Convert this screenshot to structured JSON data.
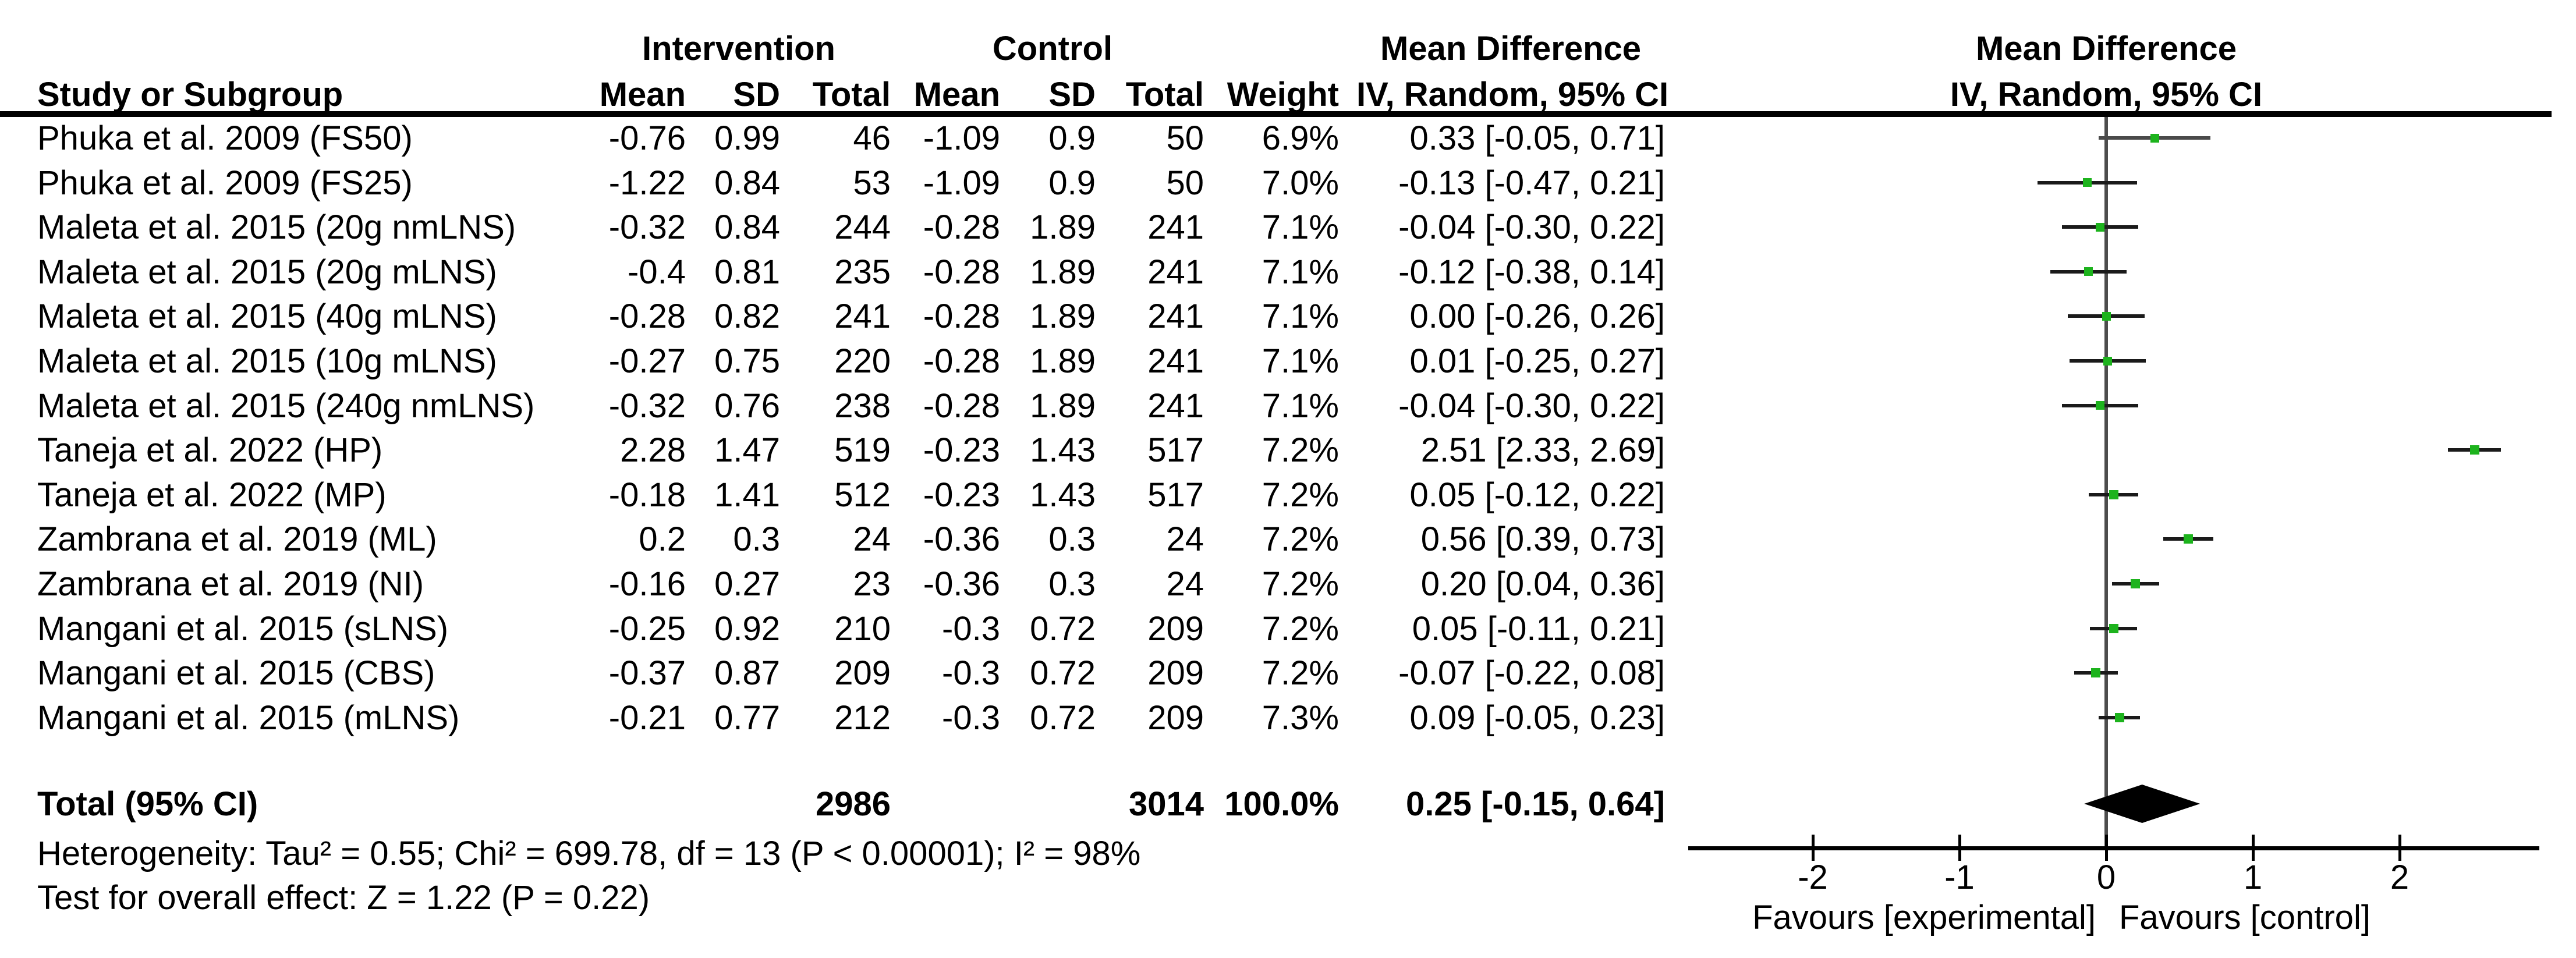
{
  "headers": {
    "study_col": "Study or Subgroup",
    "group1": "Intervention",
    "group2": "Control",
    "cols": [
      "Mean",
      "SD",
      "Total",
      "Mean",
      "SD",
      "Total",
      "Weight"
    ],
    "md_left_title": "Mean Difference",
    "md_left_sub": "IV, Random, 95% CI",
    "md_right_title": "Mean Difference",
    "md_right_sub": "IV, Random, 95% CI"
  },
  "chart_data": {
    "type": "forest",
    "effect_measure": "Mean Difference",
    "model": "IV, Random, 95% CI",
    "axis": {
      "xmin": -2.85,
      "xmax": 2.95,
      "ticks": [
        -2,
        -1,
        0,
        1,
        2
      ],
      "tick_labels": [
        "-2",
        "-1",
        "0",
        "1",
        "2"
      ]
    },
    "favours_left": "Favours [experimental]",
    "favours_right": "Favours [control]",
    "studies": [
      {
        "label": "Phuka et al. 2009 (FS50)",
        "mean1": "-0.76",
        "sd1": "0.99",
        "n1": "46",
        "mean2": "-1.09",
        "sd2": "0.9",
        "n2": "50",
        "weight": "6.9%",
        "ci_text": "0.33 [-0.05, 0.71]",
        "md": 0.33,
        "lo": -0.05,
        "hi": 0.71,
        "w": 6.9
      },
      {
        "label": "Phuka et al. 2009 (FS25)",
        "mean1": "-1.22",
        "sd1": "0.84",
        "n1": "53",
        "mean2": "-1.09",
        "sd2": "0.9",
        "n2": "50",
        "weight": "7.0%",
        "ci_text": "-0.13 [-0.47, 0.21]",
        "md": -0.13,
        "lo": -0.47,
        "hi": 0.21,
        "w": 7.0
      },
      {
        "label": "Maleta et al. 2015 (20g nmLNS)",
        "mean1": "-0.32",
        "sd1": "0.84",
        "n1": "244",
        "mean2": "-0.28",
        "sd2": "1.89",
        "n2": "241",
        "weight": "7.1%",
        "ci_text": "-0.04 [-0.30, 0.22]",
        "md": -0.04,
        "lo": -0.3,
        "hi": 0.22,
        "w": 7.1
      },
      {
        "label": "Maleta et al. 2015 (20g mLNS)",
        "mean1": "-0.4",
        "sd1": "0.81",
        "n1": "235",
        "mean2": "-0.28",
        "sd2": "1.89",
        "n2": "241",
        "weight": "7.1%",
        "ci_text": "-0.12 [-0.38, 0.14]",
        "md": -0.12,
        "lo": -0.38,
        "hi": 0.14,
        "w": 7.1
      },
      {
        "label": "Maleta et al. 2015 (40g mLNS)",
        "mean1": "-0.28",
        "sd1": "0.82",
        "n1": "241",
        "mean2": "-0.28",
        "sd2": "1.89",
        "n2": "241",
        "weight": "7.1%",
        "ci_text": "0.00 [-0.26, 0.26]",
        "md": 0.0,
        "lo": -0.26,
        "hi": 0.26,
        "w": 7.1
      },
      {
        "label": "Maleta et al. 2015 (10g mLNS)",
        "mean1": "-0.27",
        "sd1": "0.75",
        "n1": "220",
        "mean2": "-0.28",
        "sd2": "1.89",
        "n2": "241",
        "weight": "7.1%",
        "ci_text": "0.01 [-0.25, 0.27]",
        "md": 0.01,
        "lo": -0.25,
        "hi": 0.27,
        "w": 7.1
      },
      {
        "label": "Maleta et al. 2015 (240g nmLNS)",
        "mean1": "-0.32",
        "sd1": "0.76",
        "n1": "238",
        "mean2": "-0.28",
        "sd2": "1.89",
        "n2": "241",
        "weight": "7.1%",
        "ci_text": "-0.04 [-0.30, 0.22]",
        "md": -0.04,
        "lo": -0.3,
        "hi": 0.22,
        "w": 7.1
      },
      {
        "label": "Taneja et al. 2022 (HP)",
        "mean1": "2.28",
        "sd1": "1.47",
        "n1": "519",
        "mean2": "-0.23",
        "sd2": "1.43",
        "n2": "517",
        "weight": "7.2%",
        "ci_text": "2.51 [2.33, 2.69]",
        "md": 2.51,
        "lo": 2.33,
        "hi": 2.69,
        "w": 7.2
      },
      {
        "label": "Taneja et al. 2022 (MP)",
        "mean1": "-0.18",
        "sd1": "1.41",
        "n1": "512",
        "mean2": "-0.23",
        "sd2": "1.43",
        "n2": "517",
        "weight": "7.2%",
        "ci_text": "0.05 [-0.12, 0.22]",
        "md": 0.05,
        "lo": -0.12,
        "hi": 0.22,
        "w": 7.2
      },
      {
        "label": "Zambrana et al. 2019 (ML)",
        "mean1": "0.2",
        "sd1": "0.3",
        "n1": "24",
        "mean2": "-0.36",
        "sd2": "0.3",
        "n2": "24",
        "weight": "7.2%",
        "ci_text": "0.56 [0.39, 0.73]",
        "md": 0.56,
        "lo": 0.39,
        "hi": 0.73,
        "w": 7.2
      },
      {
        "label": "Zambrana et al. 2019 (NI)",
        "mean1": "-0.16",
        "sd1": "0.27",
        "n1": "23",
        "mean2": "-0.36",
        "sd2": "0.3",
        "n2": "24",
        "weight": "7.2%",
        "ci_text": "0.20 [0.04, 0.36]",
        "md": 0.2,
        "lo": 0.04,
        "hi": 0.36,
        "w": 7.2
      },
      {
        "label": "Mangani et al. 2015 (sLNS)",
        "mean1": "-0.25",
        "sd1": "0.92",
        "n1": "210",
        "mean2": "-0.3",
        "sd2": "0.72",
        "n2": "209",
        "weight": "7.2%",
        "ci_text": "0.05 [-0.11, 0.21]",
        "md": 0.05,
        "lo": -0.11,
        "hi": 0.21,
        "w": 7.2
      },
      {
        "label": "Mangani et al. 2015 (CBS)",
        "mean1": "-0.37",
        "sd1": "0.87",
        "n1": "209",
        "mean2": "-0.3",
        "sd2": "0.72",
        "n2": "209",
        "weight": "7.2%",
        "ci_text": "-0.07 [-0.22, 0.08]",
        "md": -0.07,
        "lo": -0.22,
        "hi": 0.08,
        "w": 7.2
      },
      {
        "label": "Mangani et al. 2015 (mLNS)",
        "mean1": "-0.21",
        "sd1": "0.77",
        "n1": "212",
        "mean2": "-0.3",
        "sd2": "0.72",
        "n2": "209",
        "weight": "7.3%",
        "ci_text": "0.09 [-0.05, 0.23]",
        "md": 0.09,
        "lo": -0.05,
        "hi": 0.23,
        "w": 7.3
      }
    ],
    "total": {
      "label": "Total (95% CI)",
      "n1": "2986",
      "n2": "3014",
      "weight": "100.0%",
      "ci_text": "0.25 [-0.15, 0.64]",
      "md": 0.25,
      "lo": -0.15,
      "hi": 0.64
    },
    "footer_heterogeneity": "Heterogeneity: Tau² = 0.55; Chi² = 699.78, df = 13 (P < 0.00001); I² = 98%",
    "footer_overall_effect": "Test for overall effect: Z = 1.22 (P = 0.22)",
    "colors": {
      "marker_green": "#1db31d",
      "ci_line": "#1a1a1a",
      "first_row_ci_line": "#4a4a4a",
      "zero_line": "#4d4d4d",
      "text": "#000000"
    }
  }
}
